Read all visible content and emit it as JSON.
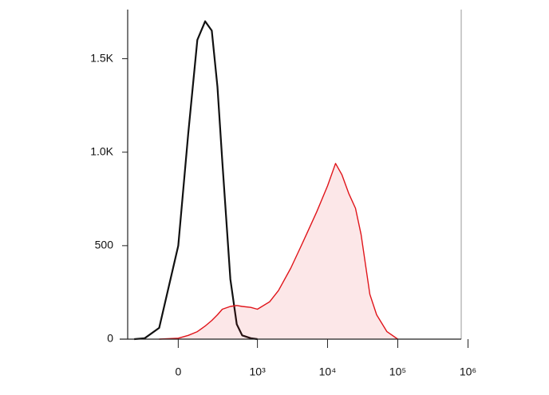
{
  "chart_data": {
    "type": "histogram-overlay",
    "x": [
      -300,
      -200,
      -100,
      0,
      50,
      100,
      150,
      200,
      250,
      300,
      400,
      500,
      600,
      800,
      1000,
      1500,
      2000,
      3000,
      4000,
      5000,
      7000,
      10000,
      13000,
      16000,
      20000,
      25000,
      30000,
      40000,
      50000,
      70000,
      100000
    ],
    "series": [
      {
        "color": "#111111",
        "fill": false,
        "values": [
          0,
          5,
          60,
          500,
          1100,
          1600,
          1700,
          1650,
          1350,
          950,
          320,
          80,
          20,
          5,
          0,
          null,
          null,
          null,
          null,
          null,
          null,
          null,
          null,
          null,
          null,
          null,
          null,
          null,
          null,
          null,
          null
        ]
      },
      {
        "color": "#e0141a",
        "fill": true,
        "values": [
          null,
          null,
          0,
          5,
          20,
          40,
          70,
          100,
          130,
          160,
          175,
          180,
          175,
          170,
          160,
          200,
          260,
          380,
          480,
          560,
          680,
          820,
          940,
          880,
          780,
          700,
          560,
          240,
          130,
          40,
          0
        ]
      }
    ],
    "xscale": "asinh",
    "xlim": [
      -500,
      800000
    ],
    "xticks": [
      0,
      {
        "value": 1000,
        "label": "10³"
      },
      {
        "value": 10000,
        "label": "10⁴"
      },
      {
        "value": 100000,
        "label": "10⁵"
      },
      {
        "value": 1000000,
        "label": "10⁶"
      }
    ],
    "ylim": [
      0,
      1750
    ],
    "yticks": [
      0,
      500,
      {
        "value": 1000,
        "label": "1.0K"
      },
      {
        "value": 1500,
        "label": "1.5K"
      }
    ]
  }
}
